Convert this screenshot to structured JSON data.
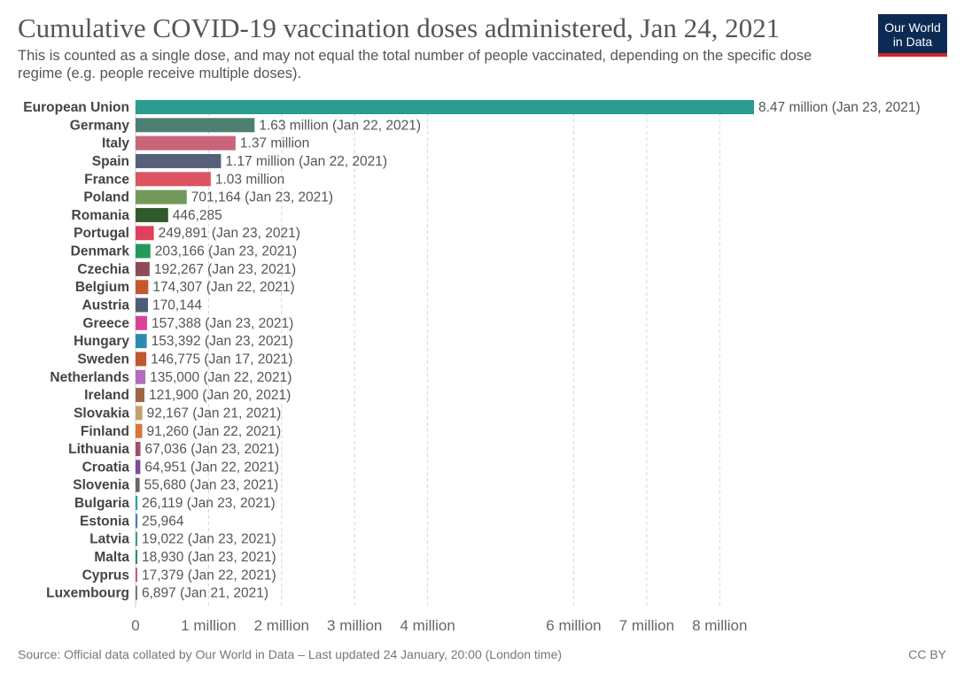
{
  "title": "Cumulative COVID-19 vaccination doses administered, Jan 24, 2021",
  "subtitle": "This is counted as a single dose, and may not equal the total number of people vaccinated, depending on the specific dose regime (e.g. people receive multiple doses).",
  "logo": {
    "line1": "Our World",
    "line2": "in Data",
    "bg_color": "#0c2b54",
    "accent_color": "#d0252e"
  },
  "footer": {
    "source": "Source: Official data collated by Our World in Data – Last updated 24 January, 20:00 (London time)",
    "license": "CC BY"
  },
  "chart_data": {
    "type": "bar",
    "orientation": "horizontal",
    "title": "Cumulative COVID-19 vaccination doses administered, Jan 24, 2021",
    "xlim": [
      0,
      8470000
    ],
    "grid": "vertical dashed",
    "x_ticks": [
      {
        "value": 0,
        "label": "0"
      },
      {
        "value": 1000000,
        "label": "1 million"
      },
      {
        "value": 2000000,
        "label": "2 million"
      },
      {
        "value": 3000000,
        "label": "3 million"
      },
      {
        "value": 4000000,
        "label": "4 million"
      },
      {
        "value": 6000000,
        "label": "6 million"
      },
      {
        "value": 7000000,
        "label": "7 million"
      },
      {
        "value": 8000000,
        "label": "8 million"
      }
    ],
    "bars": [
      {
        "category": "European Union",
        "value": 8470000,
        "label": "8.47 million (Jan 23, 2021)",
        "color": "#2a9d8f"
      },
      {
        "category": "Germany",
        "value": 1630000,
        "label": "1.63 million (Jan 22, 2021)",
        "color": "#4d7f72"
      },
      {
        "category": "Italy",
        "value": 1370000,
        "label": "1.37 million",
        "color": "#c8657a"
      },
      {
        "category": "Spain",
        "value": 1170000,
        "label": "1.17 million (Jan 22, 2021)",
        "color": "#566079"
      },
      {
        "category": "France",
        "value": 1030000,
        "label": "1.03 million",
        "color": "#dc5561"
      },
      {
        "category": "Poland",
        "value": 701164,
        "label": "701,164 (Jan 23, 2021)",
        "color": "#73995a"
      },
      {
        "category": "Romania",
        "value": 446285,
        "label": "446,285",
        "color": "#2f5a2b"
      },
      {
        "category": "Portugal",
        "value": 249891,
        "label": "249,891 (Jan 23, 2021)",
        "color": "#e0415c"
      },
      {
        "category": "Denmark",
        "value": 203166,
        "label": "203,166 (Jan 23, 2021)",
        "color": "#229a5d"
      },
      {
        "category": "Czechia",
        "value": 192267,
        "label": "192,267 (Jan 23, 2021)",
        "color": "#8f4a56"
      },
      {
        "category": "Belgium",
        "value": 174307,
        "label": "174,307 (Jan 22, 2021)",
        "color": "#c25a2e"
      },
      {
        "category": "Austria",
        "value": 170144,
        "label": "170,144",
        "color": "#4d5c78"
      },
      {
        "category": "Greece",
        "value": 157388,
        "label": "157,388 (Jan 23, 2021)",
        "color": "#d9449b"
      },
      {
        "category": "Hungary",
        "value": 153392,
        "label": "153,392 (Jan 23, 2021)",
        "color": "#2c8ab0"
      },
      {
        "category": "Sweden",
        "value": 146775,
        "label": "146,775 (Jan 17, 2021)",
        "color": "#c0562e"
      },
      {
        "category": "Netherlands",
        "value": 135000,
        "label": "135,000 (Jan 22, 2021)",
        "color": "#b36cbd"
      },
      {
        "category": "Ireland",
        "value": 121900,
        "label": "121,900 (Jan 20, 2021)",
        "color": "#9e6644"
      },
      {
        "category": "Slovakia",
        "value": 92167,
        "label": "92,167 (Jan 21, 2021)",
        "color": "#c4a06e"
      },
      {
        "category": "Finland",
        "value": 91260,
        "label": "91,260 (Jan 22, 2021)",
        "color": "#d97539"
      },
      {
        "category": "Lithuania",
        "value": 67036,
        "label": "67,036 (Jan 23, 2021)",
        "color": "#a04c6c"
      },
      {
        "category": "Croatia",
        "value": 64951,
        "label": "64,951 (Jan 22, 2021)",
        "color": "#7d4a9e"
      },
      {
        "category": "Slovenia",
        "value": 55680,
        "label": "55,680 (Jan 23, 2021)",
        "color": "#666666"
      },
      {
        "category": "Bulgaria",
        "value": 26119,
        "label": "26,119 (Jan 23, 2021)",
        "color": "#2aa3a0"
      },
      {
        "category": "Estonia",
        "value": 25964,
        "label": "25,964",
        "color": "#4d7fb5"
      },
      {
        "category": "Latvia",
        "value": 19022,
        "label": "19,022 (Jan 23, 2021)",
        "color": "#3a9d8a"
      },
      {
        "category": "Malta",
        "value": 18930,
        "label": "18,930 (Jan 23, 2021)",
        "color": "#2f8f6a"
      },
      {
        "category": "Cyprus",
        "value": 17379,
        "label": "17,379 (Jan 22, 2021)",
        "color": "#c95a8a"
      },
      {
        "category": "Luxembourg",
        "value": 6897,
        "label": "6,897 (Jan 21, 2021)",
        "color": "#7a7a7a"
      }
    ]
  }
}
